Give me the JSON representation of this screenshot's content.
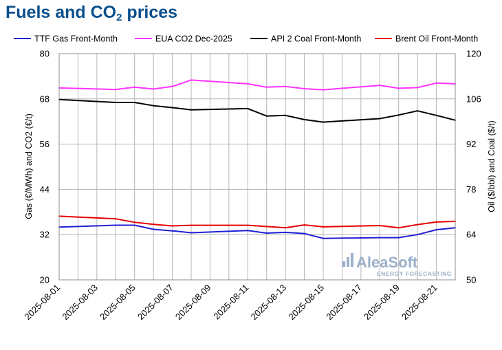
{
  "title": {
    "main": "Fuels and CO",
    "sub": "2",
    "tail": " prices"
  },
  "watermark": {
    "brand": "AleaSoft",
    "tagline": "ENERGY FORECASTING"
  },
  "chart_data": {
    "type": "line",
    "x": [
      "2025-08-01",
      "2025-08-04",
      "2025-08-05",
      "2025-08-06",
      "2025-08-07",
      "2025-08-08",
      "2025-08-11",
      "2025-08-12",
      "2025-08-13",
      "2025-08-14",
      "2025-08-15",
      "2025-08-18",
      "2025-08-19",
      "2025-08-20",
      "2025-08-21",
      "2025-08-22"
    ],
    "x_tick_labels": [
      "2025-08-01",
      "2025-08-03",
      "2025-08-05",
      "2025-08-07",
      "2025-08-09",
      "2025-08-11",
      "2025-08-13",
      "2025-08-15",
      "2025-08-17",
      "2025-08-19",
      "2025-08-21"
    ],
    "ylabel": "Gas (€/MWh) and CO2 (€/t)",
    "ylabel_right": "Oil ($/bbl) and Coal ($/t)",
    "ylim": [
      20,
      80
    ],
    "ylim_right": [
      50,
      120
    ],
    "yticks": [
      20,
      32,
      44,
      56,
      68,
      80
    ],
    "yticks_right": [
      50,
      64,
      78,
      92,
      106,
      120
    ],
    "grid": true,
    "legend_position": "top",
    "colors": {
      "ttf": "#1f1fd6",
      "eua": "#ff33ff",
      "coal": "#000000",
      "brent": "#e60000"
    },
    "series": [
      {
        "name": "TTF Gas Front-Month",
        "axis": "left",
        "color": "#1f1fd6",
        "values": [
          34.0,
          34.5,
          34.5,
          33.4,
          33.0,
          32.5,
          33.1,
          32.4,
          32.6,
          32.3,
          31.0,
          31.2,
          31.2,
          32.0,
          33.3,
          33.8
        ]
      },
      {
        "name": "EUA CO2 Dec-2025",
        "axis": "left",
        "color": "#ff33ff",
        "values": [
          70.9,
          70.5,
          71.1,
          70.6,
          71.3,
          73.0,
          72.0,
          71.1,
          71.3,
          70.7,
          70.4,
          71.6,
          70.8,
          71.0,
          72.2,
          72.0
        ]
      },
      {
        "name": "API 2 Coal Front-Month",
        "axis": "right",
        "color": "#000000",
        "values": [
          105.8,
          104.9,
          104.9,
          103.9,
          103.3,
          102.6,
          103.0,
          100.7,
          100.9,
          99.6,
          98.8,
          99.9,
          101.0,
          102.3,
          100.9,
          99.4
        ]
      },
      {
        "name": "Brent Oil Front-Month",
        "axis": "right",
        "color": "#e60000",
        "values": [
          69.7,
          68.9,
          67.8,
          67.2,
          66.7,
          66.9,
          66.9,
          66.5,
          66.1,
          67.0,
          66.4,
          66.8,
          66.1,
          67.1,
          67.9,
          68.1
        ]
      }
    ]
  }
}
